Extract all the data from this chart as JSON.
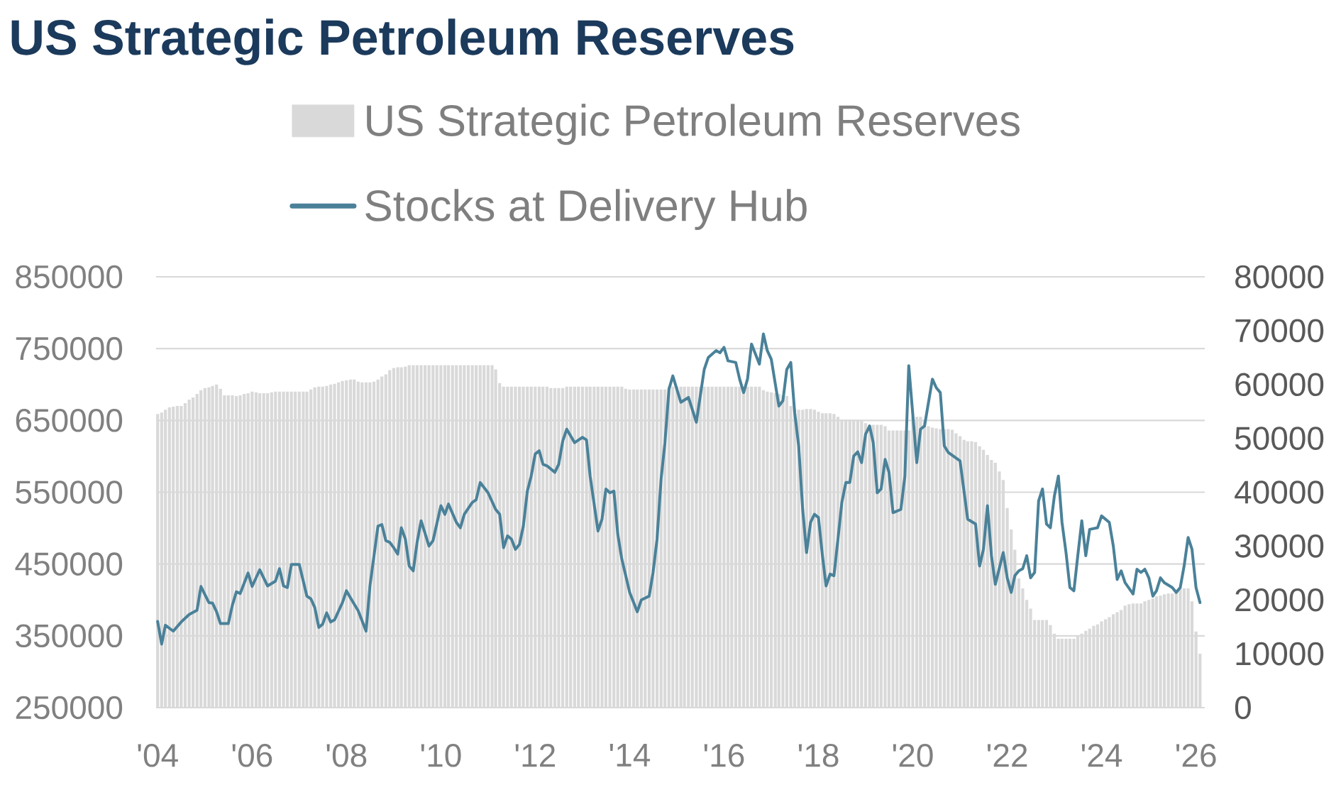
{
  "chart_data": {
    "type": "bar",
    "title": "US Strategic Petroleum Reserves",
    "x": [
      "2004-01",
      "2004-02",
      "2004-03",
      "2004-04",
      "2004-05",
      "2004-06",
      "2004-07",
      "2004-08",
      "2004-09",
      "2004-10",
      "2004-11",
      "2004-12",
      "2005-01",
      "2005-02",
      "2005-03",
      "2005-04",
      "2005-05",
      "2005-06",
      "2005-07",
      "2005-08",
      "2005-09",
      "2005-10",
      "2005-11",
      "2005-12",
      "2006-01",
      "2006-02",
      "2006-03",
      "2006-04",
      "2006-05",
      "2006-06",
      "2006-07",
      "2006-08",
      "2006-09",
      "2006-10",
      "2006-11",
      "2006-12",
      "2007-01",
      "2007-02",
      "2007-03",
      "2007-04",
      "2007-05",
      "2007-06",
      "2007-07",
      "2007-08",
      "2007-09",
      "2007-10",
      "2007-11",
      "2007-12",
      "2008-01",
      "2008-02",
      "2008-03",
      "2008-04",
      "2008-05",
      "2008-06",
      "2008-07",
      "2008-08",
      "2008-09",
      "2008-10",
      "2008-11",
      "2008-12",
      "2009-01",
      "2009-02",
      "2009-03",
      "2009-04",
      "2009-05",
      "2009-06",
      "2009-07",
      "2009-08",
      "2009-09",
      "2009-10",
      "2009-11",
      "2009-12",
      "2010-01",
      "2010-02",
      "2010-03",
      "2010-04",
      "2010-05",
      "2010-06",
      "2010-07",
      "2010-08",
      "2010-09",
      "2010-10",
      "2010-11",
      "2010-12",
      "2011-01",
      "2011-02",
      "2011-03",
      "2011-04",
      "2011-05",
      "2011-06",
      "2011-07",
      "2011-08",
      "2011-09",
      "2011-10",
      "2011-11",
      "2011-12",
      "2012-01",
      "2012-02",
      "2012-03",
      "2012-04",
      "2012-05",
      "2012-06",
      "2012-07",
      "2012-08",
      "2012-09",
      "2012-10",
      "2012-11",
      "2012-12",
      "2013-01",
      "2013-02",
      "2013-03",
      "2013-04",
      "2013-05",
      "2013-06",
      "2013-07",
      "2013-08",
      "2013-09",
      "2013-10",
      "2013-11",
      "2013-12",
      "2014-01",
      "2014-02",
      "2014-03",
      "2014-04",
      "2014-05",
      "2014-06",
      "2014-07",
      "2014-08",
      "2014-09",
      "2014-10",
      "2014-11",
      "2014-12",
      "2015-01",
      "2015-02",
      "2015-03",
      "2015-04",
      "2015-05",
      "2015-06",
      "2015-07",
      "2015-08",
      "2015-09",
      "2015-10",
      "2015-11",
      "2015-12",
      "2016-01",
      "2016-02",
      "2016-03",
      "2016-04",
      "2016-05",
      "2016-06",
      "2016-07",
      "2016-08",
      "2016-09",
      "2016-10",
      "2016-11",
      "2016-12",
      "2017-01",
      "2017-02",
      "2017-03",
      "2017-04",
      "2017-05",
      "2017-06",
      "2017-07",
      "2017-08",
      "2017-09",
      "2017-10",
      "2017-11",
      "2017-12",
      "2018-01",
      "2018-02",
      "2018-03",
      "2018-04",
      "2018-05",
      "2018-06",
      "2018-07",
      "2018-08",
      "2018-09",
      "2018-10",
      "2018-11",
      "2018-12",
      "2019-01",
      "2019-02",
      "2019-03",
      "2019-04",
      "2019-05",
      "2019-06",
      "2019-07",
      "2019-08",
      "2019-09",
      "2019-10",
      "2019-11",
      "2019-12",
      "2020-01",
      "2020-02",
      "2020-03",
      "2020-04",
      "2020-05",
      "2020-06",
      "2020-07",
      "2020-08",
      "2020-09",
      "2020-10",
      "2020-11",
      "2020-12",
      "2021-01",
      "2021-02",
      "2021-03",
      "2021-04",
      "2021-05",
      "2021-06",
      "2021-07",
      "2021-08",
      "2021-09",
      "2021-10",
      "2021-11",
      "2021-12",
      "2022-01",
      "2022-02",
      "2022-03",
      "2022-04",
      "2022-05",
      "2022-06",
      "2022-07",
      "2022-08",
      "2022-09",
      "2022-10",
      "2022-11",
      "2022-12",
      "2023-01",
      "2023-02",
      "2023-03",
      "2023-04",
      "2023-05",
      "2023-06",
      "2023-07",
      "2023-08",
      "2023-09",
      "2023-10",
      "2023-11",
      "2023-12",
      "2024-01",
      "2024-02",
      "2024-03",
      "2024-04",
      "2024-05",
      "2024-06",
      "2024-07",
      "2024-08",
      "2024-09",
      "2024-10",
      "2024-11",
      "2024-12",
      "2025-01",
      "2025-02",
      "2025-03",
      "2025-04",
      "2025-05",
      "2025-06",
      "2025-07",
      "2025-08",
      "2025-09",
      "2025-10",
      "2025-11",
      "2025-12",
      "2026-01",
      "2026-02"
    ],
    "series": [
      {
        "name": "US Strategic Petroleum Reserves",
        "color": "#d9d9d9",
        "values": [
          659000,
          661000,
          665000,
          668000,
          669000,
          670000,
          670000,
          674000,
          679000,
          682000,
          687000,
          692000,
          695000,
          696000,
          698000,
          700000,
          694000,
          685000,
          685000,
          685000,
          684000,
          685000,
          687000,
          688000,
          690000,
          689000,
          688000,
          688000,
          688000,
          689000,
          690000,
          690000,
          690000,
          690000,
          690000,
          690000,
          690000,
          690000,
          690000,
          693000,
          696000,
          697000,
          697000,
          698000,
          700000,
          701000,
          703000,
          705000,
          706000,
          707000,
          707000,
          704000,
          703000,
          703000,
          703000,
          704000,
          707000,
          711000,
          714000,
          720000,
          723000,
          724000,
          724000,
          725000,
          727000,
          727000,
          727000,
          727000,
          727000,
          727000,
          727000,
          727000,
          727000,
          727000,
          727000,
          727000,
          727000,
          727000,
          727000,
          727000,
          727000,
          727000,
          727000,
          727000,
          727000,
          727000,
          721000,
          702000,
          697000,
          697000,
          697000,
          697000,
          697000,
          697000,
          697000,
          697000,
          697000,
          697000,
          697000,
          697000,
          695000,
          695000,
          695000,
          695000,
          697000,
          697000,
          697000,
          697000,
          697000,
          697000,
          697000,
          697000,
          697000,
          697000,
          697000,
          697000,
          697000,
          697000,
          697000,
          694000,
          693000,
          693000,
          693000,
          693000,
          693000,
          693000,
          693000,
          693000,
          693000,
          693000,
          697000,
          697000,
          697000,
          697000,
          697000,
          697000,
          697000,
          697000,
          697000,
          697000,
          697000,
          697000,
          697000,
          697000,
          697000,
          697000,
          697000,
          697000,
          697000,
          697000,
          697000,
          697000,
          697000,
          697000,
          692000,
          690000,
          689000,
          688000,
          687000,
          685000,
          684000,
          670000,
          666000,
          665000,
          665000,
          666000,
          666000,
          665000,
          662000,
          660000,
          660000,
          660000,
          659000,
          655000,
          651000,
          651000,
          651000,
          651000,
          651000,
          650000,
          646000,
          644000,
          644000,
          644000,
          644000,
          642000,
          636000,
          636000,
          636000,
          636000,
          636000,
          636000,
          655000,
          655000,
          655000,
          649000,
          642000,
          640000,
          639000,
          638000,
          638000,
          638000,
          637000,
          632000,
          628000,
          623000,
          621000,
          621000,
          620000,
          614000,
          609000,
          602000,
          595000,
          591000,
          579000,
          567000,
          528000,
          498000,
          470000,
          430000,
          416000,
          400000,
          388000,
          372000,
          372000,
          372000,
          372000,
          365000,
          353000,
          346000,
          346000,
          346000,
          346000,
          346000,
          350000,
          353000,
          357000,
          360000,
          364000,
          366000,
          370000,
          373000,
          376000,
          380000,
          383000,
          386000,
          392000,
          394000,
          395000,
          395000,
          395000,
          398000,
          400000,
          402000,
          405000,
          406000,
          408000,
          409000,
          409000,
          412000,
          416000,
          416000,
          416000,
          398000,
          356000,
          325000
        ]
      },
      {
        "name": "Stocks at Delivery Hub",
        "type": "line",
        "axis": "y2",
        "color": "#4a8199",
        "x": [
          "2004-01",
          "2004-02",
          "2004-03",
          "2004-05",
          "2004-07",
          "2004-09",
          "2004-11",
          "2004-12",
          "2005-02",
          "2005-03",
          "2005-04",
          "2005-05",
          "2005-07",
          "2005-08",
          "2005-09",
          "2005-10",
          "2005-12",
          "2006-01",
          "2006-03",
          "2006-05",
          "2006-07",
          "2006-08",
          "2006-09",
          "2006-10",
          "2006-11",
          "2007-01",
          "2007-02",
          "2007-03",
          "2007-04",
          "2007-05",
          "2007-06",
          "2007-07",
          "2007-08",
          "2007-09",
          "2007-10",
          "2007-12",
          "2008-01",
          "2008-02",
          "2008-04",
          "2008-06",
          "2008-07",
          "2008-09",
          "2008-10",
          "2008-11",
          "2008-12",
          "2009-01",
          "2009-02",
          "2009-03",
          "2009-04",
          "2009-05",
          "2009-06",
          "2009-07",
          "2009-08",
          "2009-10",
          "2009-11",
          "2010-01",
          "2010-02",
          "2010-03",
          "2010-05",
          "2010-06",
          "2010-07",
          "2010-09",
          "2010-10",
          "2010-11",
          "2011-01",
          "2011-03",
          "2011-04",
          "2011-05",
          "2011-06",
          "2011-07",
          "2011-08",
          "2011-09",
          "2011-10",
          "2011-11",
          "2011-12",
          "2012-01",
          "2012-02",
          "2012-03",
          "2012-04",
          "2012-06",
          "2012-07",
          "2012-08",
          "2012-09",
          "2012-11",
          "2013-01",
          "2013-02",
          "2013-03",
          "2013-05",
          "2013-06",
          "2013-07",
          "2013-08",
          "2013-09",
          "2013-10",
          "2013-11",
          "2014-01",
          "2014-02",
          "2014-03",
          "2014-04",
          "2014-06",
          "2014-07",
          "2014-08",
          "2014-09",
          "2014-10",
          "2014-11",
          "2014-12",
          "2015-02",
          "2015-04",
          "2015-06",
          "2015-08",
          "2015-09",
          "2015-11",
          "2015-12",
          "2016-01",
          "2016-02",
          "2016-04",
          "2016-05",
          "2016-06",
          "2016-07",
          "2016-08",
          "2016-10",
          "2016-11",
          "2016-12",
          "2017-01",
          "2017-03",
          "2017-04",
          "2017-05",
          "2017-06",
          "2017-07",
          "2017-08",
          "2017-09",
          "2017-10",
          "2017-11",
          "2017-12",
          "2018-01",
          "2018-02",
          "2018-03",
          "2018-04",
          "2018-05",
          "2018-06",
          "2018-07",
          "2018-08",
          "2018-09",
          "2018-10",
          "2018-11",
          "2018-12",
          "2019-01",
          "2019-02",
          "2019-03",
          "2019-04",
          "2019-05",
          "2019-06",
          "2019-07",
          "2019-08",
          "2019-10",
          "2019-11",
          "2019-12",
          "2020-02",
          "2020-03",
          "2020-04",
          "2020-06",
          "2020-07",
          "2020-08",
          "2020-09",
          "2020-10",
          "2021-01",
          "2021-03",
          "2021-05",
          "2021-06",
          "2021-07",
          "2021-08",
          "2021-09",
          "2021-10",
          "2021-12",
          "2022-01",
          "2022-02",
          "2022-03",
          "2022-04",
          "2022-05",
          "2022-06",
          "2022-07",
          "2022-08",
          "2022-09",
          "2022-10",
          "2022-11",
          "2022-12",
          "2023-01",
          "2023-02",
          "2023-03",
          "2023-04",
          "2023-05",
          "2023-06",
          "2023-07",
          "2023-08",
          "2023-09",
          "2023-10",
          "2023-12",
          "2024-01",
          "2024-03",
          "2024-04",
          "2024-05",
          "2024-06",
          "2024-07",
          "2024-09",
          "2024-10",
          "2024-11",
          "2024-12",
          "2025-01",
          "2025-02",
          "2025-03",
          "2025-04",
          "2025-05",
          "2025-07",
          "2025-08",
          "2025-09",
          "2025-10",
          "2025-11",
          "2025-12",
          "2026-01",
          "2026-02"
        ],
        "values": [
          16000,
          11800,
          15300,
          14200,
          15900,
          17300,
          18100,
          22500,
          19500,
          19400,
          17800,
          15600,
          15600,
          19000,
          21500,
          21200,
          25000,
          22500,
          25600,
          22600,
          23500,
          25800,
          22600,
          22300,
          26600,
          26600,
          23500,
          20700,
          20200,
          18600,
          14900,
          15500,
          17600,
          15900,
          16300,
          19500,
          21700,
          20400,
          18000,
          14200,
          22600,
          33700,
          34000,
          31000,
          30700,
          29700,
          28500,
          33400,
          31300,
          26300,
          25400,
          30700,
          34700,
          30000,
          31000,
          37500,
          35900,
          37800,
          34400,
          33400,
          35900,
          38100,
          38600,
          41800,
          39900,
          36800,
          35900,
          29700,
          31900,
          31300,
          29400,
          30300,
          33700,
          40200,
          43000,
          47100,
          47700,
          45200,
          44900,
          43700,
          45200,
          49500,
          51700,
          49200,
          50200,
          49700,
          43000,
          32800,
          35000,
          40600,
          39900,
          40200,
          32200,
          27600,
          21400,
          19500,
          17800,
          20000,
          20700,
          25100,
          31300,
          42400,
          49200,
          59100,
          61600,
          56700,
          57600,
          53000,
          62800,
          65000,
          66300,
          65900,
          66900,
          64400,
          64100,
          61000,
          58500,
          61000,
          67500,
          63800,
          69400,
          66300,
          64700,
          56000,
          57000,
          62800,
          64100,
          54800,
          48600,
          36800,
          28800,
          34400,
          35900,
          35300,
          28200,
          22600,
          24800,
          24500,
          31300,
          38100,
          41800,
          41800,
          46700,
          47500,
          45500,
          50800,
          52300,
          49200,
          39900,
          40600,
          46100,
          43700,
          36200,
          36800,
          43000,
          63500,
          45500,
          51700,
          52300,
          61000,
          59400,
          58500,
          48600,
          47400,
          45800,
          35000,
          34100,
          26300,
          29400,
          37500,
          28200,
          22900,
          28800,
          24100,
          21400,
          24500,
          25400,
          25800,
          28200,
          24100,
          25100,
          38400,
          40600,
          34100,
          33400,
          39300,
          43000,
          34400,
          28800,
          22300,
          21700,
          28200,
          34700,
          28200,
          33100,
          33400,
          35600,
          34400,
          30000,
          23800,
          25400,
          23200,
          21100,
          25700,
          25100,
          25700,
          24100,
          20700,
          21700,
          24100,
          23200,
          22300,
          21400,
          22300,
          26300,
          31600,
          29400,
          22300,
          19500
        ]
      }
    ],
    "xlim": [
      "2003-12-20",
      "2026-03-10"
    ],
    "xticks": [
      {
        "value": "2004-01-01",
        "label": "'04"
      },
      {
        "value": "2006-01-01",
        "label": "'06"
      },
      {
        "value": "2008-01-01",
        "label": "'08"
      },
      {
        "value": "2010-01-01",
        "label": "'10"
      },
      {
        "value": "2012-01-01",
        "label": "'12"
      },
      {
        "value": "2014-01-01",
        "label": "'14"
      },
      {
        "value": "2016-01-01",
        "label": "'16"
      },
      {
        "value": "2018-01-01",
        "label": "'18"
      },
      {
        "value": "2020-01-01",
        "label": "'20"
      },
      {
        "value": "2022-01-01",
        "label": "'22"
      },
      {
        "value": "2024-01-01",
        "label": "'24"
      },
      {
        "value": "2026-01-01",
        "label": "'26"
      }
    ],
    "ylim": [
      250000,
      850000
    ],
    "yticks": [
      250000,
      350000,
      450000,
      550000,
      650000,
      750000,
      850000
    ],
    "y2lim": [
      0,
      80000
    ],
    "y2ticks": [
      0,
      10000,
      20000,
      30000,
      40000,
      50000,
      60000,
      70000,
      80000
    ],
    "grid": "y",
    "legend": "top"
  }
}
